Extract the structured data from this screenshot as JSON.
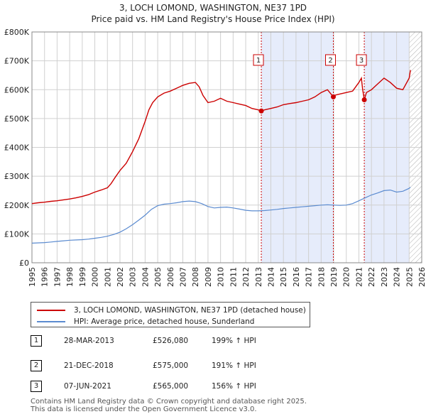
{
  "chart_data": {
    "type": "line",
    "title": "3, LOCH LOMOND, WASHINGTON, NE37 1PD",
    "subtitle": "Price paid vs. HM Land Registry's House Price Index (HPI)",
    "xlabel": "",
    "ylabel": "",
    "xlim": [
      1995,
      2026
    ],
    "ylim": [
      0,
      800000
    ],
    "x_ticks": [
      1995,
      1996,
      1997,
      1998,
      1999,
      2000,
      2001,
      2002,
      2003,
      2004,
      2005,
      2006,
      2007,
      2008,
      2009,
      2010,
      2011,
      2012,
      2013,
      2014,
      2015,
      2016,
      2017,
      2018,
      2019,
      2020,
      2021,
      2022,
      2023,
      2024,
      2025,
      2026
    ],
    "y_ticks": [
      0,
      100000,
      200000,
      300000,
      400000,
      500000,
      600000,
      700000,
      800000
    ],
    "y_tick_labels": [
      "£0",
      "£100K",
      "£200K",
      "£300K",
      "£400K",
      "£500K",
      "£600K",
      "£700K",
      "£800K"
    ],
    "grid": true,
    "series": [
      {
        "name": "3, LOCH LOMOND, WASHINGTON, NE37 1PD (detached house)",
        "color": "#cc0000",
        "x": [
          1995.0,
          1995.5,
          1996.0,
          1996.5,
          1997.0,
          1997.5,
          1998.0,
          1998.5,
          1999.0,
          1999.5,
          2000.0,
          2000.5,
          2001.0,
          2001.3,
          2001.6,
          2002.0,
          2002.5,
          2003.0,
          2003.5,
          2004.0,
          2004.3,
          2004.6,
          2005.0,
          2005.5,
          2006.0,
          2006.5,
          2007.0,
          2007.5,
          2008.0,
          2008.3,
          2008.6,
          2009.0,
          2009.5,
          2010.0,
          2010.5,
          2011.0,
          2011.5,
          2012.0,
          2012.5,
          2013.0,
          2013.24,
          2013.5,
          2014.0,
          2014.5,
          2015.0,
          2015.5,
          2016.0,
          2016.5,
          2017.0,
          2017.5,
          2018.0,
          2018.5,
          2018.97,
          2019.0,
          2019.5,
          2020.0,
          2020.5,
          2021.0,
          2021.2,
          2021.3,
          2021.43,
          2021.6,
          2022.0,
          2022.5,
          2023.0,
          2023.5,
          2024.0,
          2024.5,
          2025.0,
          2025.1
        ],
        "values": [
          205000,
          208000,
          210000,
          213000,
          215000,
          218000,
          221000,
          225000,
          230000,
          236000,
          245000,
          252000,
          260000,
          275000,
          295000,
          320000,
          345000,
          385000,
          430000,
          490000,
          530000,
          555000,
          575000,
          588000,
          595000,
          605000,
          615000,
          622000,
          625000,
          610000,
          580000,
          555000,
          560000,
          570000,
          560000,
          555000,
          550000,
          545000,
          535000,
          530000,
          526080,
          530000,
          535000,
          540000,
          548000,
          552000,
          555000,
          560000,
          565000,
          575000,
          590000,
          600000,
          575000,
          580000,
          585000,
          590000,
          595000,
          625000,
          640000,
          600000,
          565000,
          590000,
          600000,
          620000,
          640000,
          625000,
          605000,
          600000,
          640000,
          668000
        ]
      },
      {
        "name": "HPI: Average price, detached house, Sunderland",
        "color": "#5b8bd0",
        "x": [
          1995.0,
          1995.5,
          1996.0,
          1996.5,
          1997.0,
          1997.5,
          1998.0,
          1998.5,
          1999.0,
          1999.5,
          2000.0,
          2000.5,
          2001.0,
          2001.5,
          2002.0,
          2002.5,
          2003.0,
          2003.5,
          2004.0,
          2004.5,
          2005.0,
          2005.5,
          2006.0,
          2006.5,
          2007.0,
          2007.5,
          2008.0,
          2008.5,
          2009.0,
          2009.5,
          2010.0,
          2010.5,
          2011.0,
          2011.5,
          2012.0,
          2012.5,
          2013.0,
          2013.5,
          2014.0,
          2014.5,
          2015.0,
          2015.5,
          2016.0,
          2016.5,
          2017.0,
          2017.5,
          2018.0,
          2018.5,
          2019.0,
          2019.5,
          2020.0,
          2020.5,
          2021.0,
          2021.5,
          2022.0,
          2022.5,
          2023.0,
          2023.5,
          2024.0,
          2024.5,
          2025.0,
          2025.1
        ],
        "values": [
          68000,
          69000,
          70000,
          72000,
          74000,
          76000,
          78000,
          79000,
          80000,
          82000,
          85000,
          88000,
          92000,
          98000,
          106000,
          118000,
          132000,
          148000,
          165000,
          185000,
          198000,
          203000,
          205000,
          208000,
          212000,
          214000,
          212000,
          205000,
          195000,
          190000,
          192000,
          193000,
          190000,
          186000,
          182000,
          180000,
          180000,
          181000,
          183000,
          185000,
          188000,
          190000,
          192000,
          194000,
          196000,
          198000,
          200000,
          201000,
          200000,
          199000,
          200000,
          205000,
          215000,
          225000,
          235000,
          242000,
          250000,
          252000,
          245000,
          248000,
          258000,
          262000
        ]
      }
    ],
    "annotations": [
      {
        "label": "1",
        "x": 2013.24
      },
      {
        "label": "2",
        "x": 2018.97
      },
      {
        "label": "3",
        "x": 2021.43
      }
    ],
    "shaded_ranges": [
      [
        2013.24,
        2018.97
      ],
      [
        2021.43,
        2025.0
      ]
    ],
    "future_hatch_from": 2025.0
  },
  "legend": {
    "property_label": "3, LOCH LOMOND, WASHINGTON, NE37 1PD (detached house)",
    "hpi_label": "HPI: Average price, detached house, Sunderland"
  },
  "sales": [
    {
      "num": "1",
      "date": "28-MAR-2013",
      "price": "£526,080",
      "hpi": "199% ↑ HPI"
    },
    {
      "num": "2",
      "date": "21-DEC-2018",
      "price": "£575,000",
      "hpi": "191% ↑ HPI"
    },
    {
      "num": "3",
      "date": "07-JUN-2021",
      "price": "£565,000",
      "hpi": "156% ↑ HPI"
    }
  ],
  "footer": {
    "line1": "Contains HM Land Registry data © Crown copyright and database right 2025.",
    "line2": "This data is licensed under the Open Government Licence v3.0."
  },
  "colors": {
    "property": "#cc0000",
    "hpi": "#5b8bd0",
    "shade": "#e6ecfb",
    "grid": "#d0d0d0"
  }
}
